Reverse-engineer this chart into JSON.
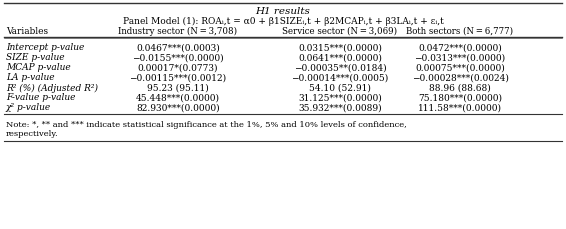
{
  "title_line1": "H1 results",
  "title_line2": "Panel Model (1): ROAᵢ,t = α0 + β1SIZEᵢ,t + β2MCAPᵢ,t + β3LAᵢ,t + εᵢ,t",
  "col_headers": [
    "Variables",
    "Industry sector (N = 3,708)",
    "Service sector (N = 3,069)",
    "Both sectors (N = 6,777)"
  ],
  "rows": [
    [
      "Intercept p-value",
      "0.0467***(0.0003)",
      "0.0315***(0.0000)",
      "0.0472***(0.0000)"
    ],
    [
      "SIZE p-value",
      "−0.0155***(0.0000)",
      "0.0641***(0.0000)",
      "−0.0313***(0.0000)"
    ],
    [
      "MCAP p-value",
      "0.00017*(0.0773)",
      "−0.00035**(0.0184)",
      "0.00075***(0.0000)"
    ],
    [
      "LA p-value",
      "−0.00115***(0.0012)",
      "−0.00014***(0.0005)",
      "−0.00028***(0.0024)"
    ],
    [
      "R² (%) (Adjusted R²)",
      "95.23 (95.11)",
      "54.10 (52.91)",
      "88.96 (88.68)"
    ],
    [
      "F-value p-value",
      "45.448***(0.0000)",
      "31.125***(0.0000)",
      "75.180***(0.0000)"
    ],
    [
      "χ² p-value",
      "82.930***(0.0000)",
      "35.932***(0.0089)",
      "111.58***(0.0000)"
    ]
  ],
  "note": "Note: *, ** and *** indicate statistical significance at the 1%, 5% and 10% levels of confidence,\nrespectively.",
  "bg_color": "#ffffff",
  "text_color": "#000000",
  "line_color": "#888888",
  "font_size": 6.5,
  "title_font_size": 7.5
}
